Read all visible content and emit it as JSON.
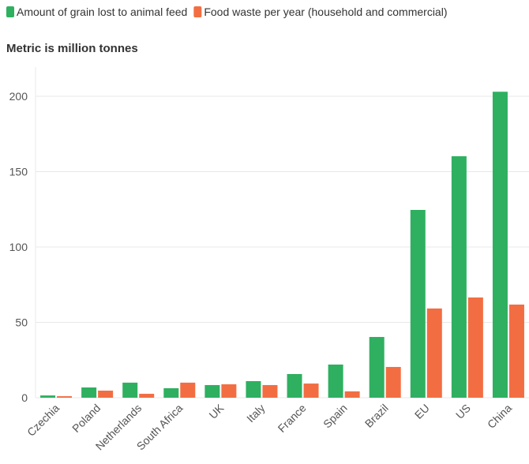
{
  "chart_data": {
    "type": "bar",
    "subtitle": "Metric is million tonnes",
    "categories": [
      "Czechia",
      "Poland",
      "Netherlands",
      "South Africa",
      "UK",
      "Italy",
      "France",
      "Spain",
      "Brazil",
      "EU",
      "US",
      "China"
    ],
    "series": [
      {
        "name": "Amount of grain lost to animal feed",
        "color": "#2eb060",
        "values": [
          1.5,
          6.8,
          10,
          6.3,
          8.4,
          11,
          15.7,
          22,
          40.3,
          124.6,
          160.2,
          203
        ]
      },
      {
        "name": "Food waste per year (household and commercial)",
        "color": "#f26e42",
        "values": [
          1,
          4.7,
          2.6,
          10,
          8.9,
          8.4,
          9.4,
          4.2,
          20.4,
          59.2,
          66.5,
          61.8
        ]
      }
    ],
    "ylim": [
      0,
      200
    ],
    "yticks": [
      0,
      50,
      100,
      150,
      200
    ],
    "grid": true,
    "legend": "top"
  }
}
